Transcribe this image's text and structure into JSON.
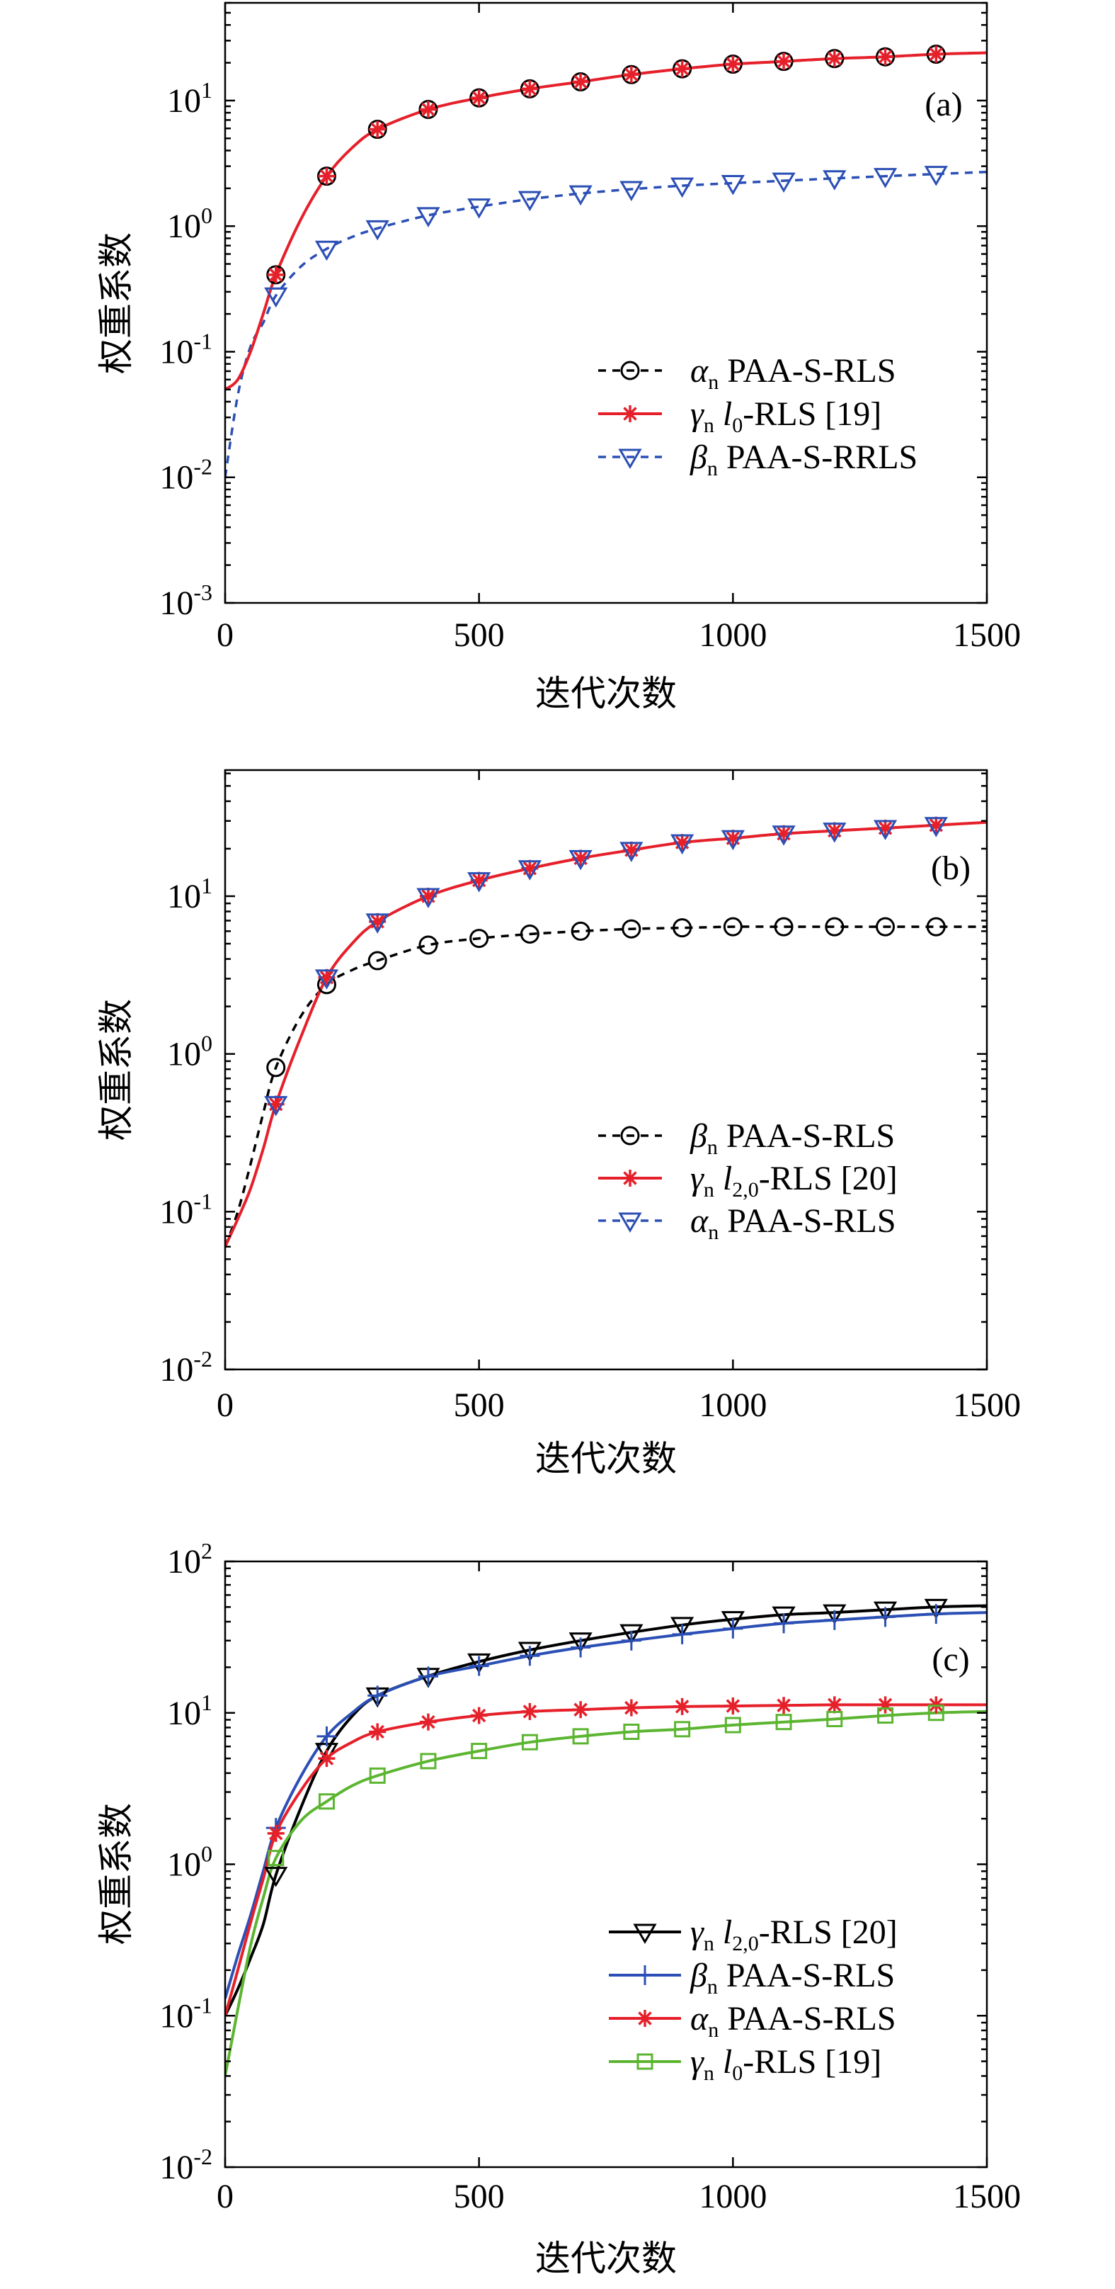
{
  "chart_data": [
    {
      "label": "(a)",
      "type": "line",
      "xlabel": "迭代次数",
      "ylabel": "权重系数",
      "xlim": [
        0,
        1500
      ],
      "ylim": [
        0.001,
        60
      ],
      "yscale": "log",
      "grid": false,
      "legend": "center-right",
      "xticks": [
        0,
        500,
        1000,
        1500
      ],
      "xtick_labels": [
        "0",
        "500",
        "1000",
        "1500"
      ],
      "yticks": [
        {
          "value": 0.001,
          "base": "10",
          "exp": "-3"
        },
        {
          "value": 0.01,
          "base": "10",
          "exp": "-2"
        },
        {
          "value": 0.1,
          "base": "10",
          "exp": "-1"
        },
        {
          "value": 1,
          "base": "10",
          "exp": "0"
        },
        {
          "value": 10,
          "base": "10",
          "exp": "1"
        }
      ],
      "x": [
        0,
        25,
        50,
        75,
        100,
        150,
        200,
        250,
        300,
        400,
        500,
        600,
        700,
        800,
        900,
        1000,
        1100,
        1200,
        1300,
        1400,
        1500
      ],
      "series": [
        {
          "name": {
            "symbol": "α",
            "sub": "n",
            "text": "PAA-S-RLS"
          },
          "color": "#000000",
          "line": "dashed",
          "marker": "circle",
          "values": [
            0.05,
            0.06,
            0.1,
            0.2,
            0.41,
            1.15,
            2.5,
            4.2,
            5.9,
            8.5,
            10.5,
            12.4,
            14.1,
            16.1,
            17.9,
            19.5,
            20.5,
            21.6,
            22.3,
            23.4,
            24
          ]
        },
        {
          "name": {
            "symbol": "γ",
            "sub": "n",
            "var": "l",
            "var_sub": "0",
            "text": "-RLS [19]"
          },
          "color": "#e6202a",
          "line": "solid",
          "marker": "star",
          "values": [
            0.05,
            0.06,
            0.1,
            0.2,
            0.41,
            1.15,
            2.5,
            4.2,
            5.9,
            8.5,
            10.5,
            12.4,
            14.1,
            16.1,
            17.9,
            19.5,
            20.5,
            21.6,
            22.3,
            23.4,
            24
          ]
        },
        {
          "name": {
            "symbol": "β",
            "sub": "n",
            "text": "PAA-S-RRLS"
          },
          "color": "#2b4fb5",
          "line": "dashed",
          "marker": "triangle-down",
          "values": [
            0.01,
            0.045,
            0.11,
            0.17,
            0.28,
            0.48,
            0.66,
            0.82,
            0.96,
            1.22,
            1.43,
            1.64,
            1.82,
            1.97,
            2.1,
            2.2,
            2.3,
            2.4,
            2.5,
            2.6,
            2.7
          ]
        }
      ]
    },
    {
      "label": "(b)",
      "type": "line",
      "xlabel": "迭代次数",
      "ylabel": "权重系数",
      "xlim": [
        0,
        1500
      ],
      "ylim": [
        0.01,
        63
      ],
      "yscale": "log",
      "grid": false,
      "legend": "lower-right",
      "xticks": [
        0,
        500,
        1000,
        1500
      ],
      "xtick_labels": [
        "0",
        "500",
        "1000",
        "1500"
      ],
      "yticks": [
        {
          "value": 0.01,
          "base": "10",
          "exp": "-2"
        },
        {
          "value": 0.1,
          "base": "10",
          "exp": "-1"
        },
        {
          "value": 1,
          "base": "10",
          "exp": "0"
        },
        {
          "value": 10,
          "base": "10",
          "exp": "1"
        }
      ],
      "x": [
        0,
        25,
        50,
        75,
        100,
        150,
        200,
        250,
        300,
        400,
        500,
        600,
        700,
        800,
        900,
        1000,
        1100,
        1200,
        1300,
        1400,
        1500
      ],
      "series": [
        {
          "name": {
            "symbol": "β",
            "sub": "n",
            "text": "PAA-S-RLS"
          },
          "color": "#000000",
          "line": "dashed",
          "marker": "circle",
          "values": [
            0.06,
            0.1,
            0.2,
            0.42,
            0.82,
            1.75,
            2.75,
            3.4,
            3.9,
            4.9,
            5.4,
            5.75,
            6.0,
            6.2,
            6.3,
            6.4,
            6.4,
            6.4,
            6.4,
            6.4,
            6.4
          ]
        },
        {
          "name": {
            "symbol": "γ",
            "sub": "n",
            "var": "l",
            "var_sub": "2,0",
            "text": "-RLS [20]"
          },
          "color": "#e6202a",
          "line": "solid",
          "marker": "star",
          "values": [
            0.06,
            0.09,
            0.14,
            0.25,
            0.48,
            1.3,
            3.05,
            5.0,
            6.9,
            10,
            12.6,
            15,
            17.4,
            19.6,
            21.9,
            23.3,
            24.9,
            26,
            27,
            28.2,
            29.4
          ]
        },
        {
          "name": {
            "symbol": "α",
            "sub": "n",
            "text": "PAA-S-RLS"
          },
          "color": "#2b4fb5",
          "line": "dashed",
          "marker": "triangle-down",
          "values": [
            0.06,
            0.09,
            0.14,
            0.25,
            0.48,
            1.3,
            3.05,
            5.0,
            6.9,
            10,
            12.6,
            15,
            17.4,
            19.6,
            21.9,
            23.3,
            24.9,
            26,
            27,
            28.2,
            29.4
          ]
        }
      ]
    },
    {
      "label": "(c)",
      "type": "line",
      "xlabel": "迭代次数",
      "ylabel": "权重系数",
      "xlim": [
        0,
        1500
      ],
      "ylim": [
        0.01,
        100
      ],
      "yscale": "log",
      "grid": false,
      "legend": "lower-right",
      "xticks": [
        0,
        500,
        1000,
        1500
      ],
      "xtick_labels": [
        "0",
        "500",
        "1000",
        "1500"
      ],
      "yticks": [
        {
          "value": 0.01,
          "base": "10",
          "exp": "-2"
        },
        {
          "value": 0.1,
          "base": "10",
          "exp": "-1"
        },
        {
          "value": 1,
          "base": "10",
          "exp": "0"
        },
        {
          "value": 10,
          "base": "10",
          "exp": "1"
        },
        {
          "value": 100,
          "base": "10",
          "exp": "2"
        }
      ],
      "x": [
        0,
        25,
        50,
        75,
        100,
        150,
        200,
        250,
        300,
        400,
        500,
        600,
        700,
        800,
        900,
        1000,
        1100,
        1200,
        1300,
        1400,
        1500
      ],
      "series": [
        {
          "name": {
            "symbol": "γ",
            "sub": "n",
            "var": "l",
            "var_sub": "2,0",
            "text": "-RLS [20]"
          },
          "color": "#000000",
          "line": "solid",
          "marker": "triangle-down",
          "values": [
            0.1,
            0.15,
            0.24,
            0.4,
            0.85,
            2.4,
            5.6,
            9.5,
            13,
            17.5,
            21.8,
            26,
            30,
            34,
            38,
            41.5,
            44.5,
            46,
            48,
            50,
            51
          ]
        },
        {
          "name": {
            "symbol": "β",
            "sub": "n",
            "text": "PAA-S-RLS"
          },
          "color": "#2b4fb5",
          "line": "solid",
          "marker": "plus",
          "values": [
            0.13,
            0.25,
            0.46,
            0.9,
            1.74,
            3.85,
            7.0,
            10,
            13,
            17.4,
            20.4,
            23.8,
            27,
            30,
            33,
            36,
            39,
            41,
            43,
            45,
            46
          ]
        },
        {
          "name": {
            "symbol": "α",
            "sub": "n",
            "text": "PAA-S-RLS"
          },
          "color": "#e6202a",
          "line": "solid",
          "marker": "star",
          "values": [
            0.1,
            0.2,
            0.41,
            0.8,
            1.6,
            3.1,
            5.0,
            6.4,
            7.5,
            8.7,
            9.6,
            10.2,
            10.5,
            10.8,
            11,
            11.1,
            11.2,
            11.3,
            11.3,
            11.3,
            11.3
          ]
        },
        {
          "name": {
            "symbol": "γ",
            "sub": "n",
            "var": "l",
            "var_sub": "0",
            "text": "-RLS [19]"
          },
          "color": "#5cb531",
          "line": "solid",
          "marker": "square",
          "values": [
            0.04,
            0.11,
            0.29,
            0.6,
            1.1,
            1.95,
            2.6,
            3.3,
            3.85,
            4.8,
            5.6,
            6.4,
            7.0,
            7.5,
            7.8,
            8.3,
            8.7,
            9.1,
            9.6,
            10,
            10.2
          ]
        }
      ]
    }
  ]
}
